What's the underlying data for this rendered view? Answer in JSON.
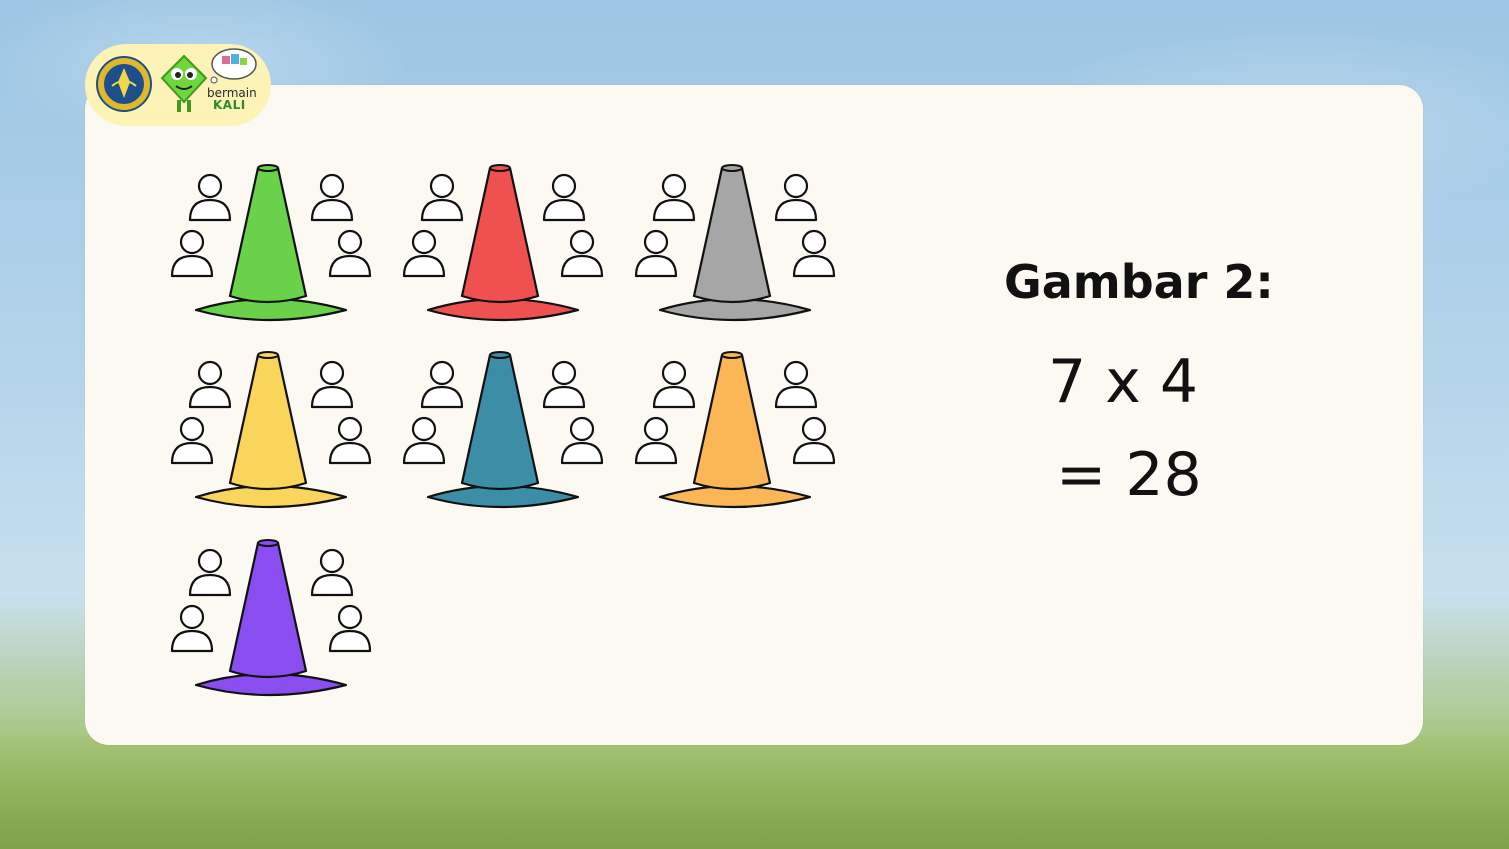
{
  "logo": {
    "brand_top": "bermain",
    "brand_bottom": "KALI"
  },
  "figure": {
    "title": "Gambar 2:",
    "equation": "7 x 4",
    "result": "= 28"
  },
  "groups": [
    {
      "color": "#6ad14a",
      "people": 4
    },
    {
      "color": "#ef5151",
      "people": 4
    },
    {
      "color": "#a6a6a6",
      "people": 4
    },
    {
      "color": "#f9d65b",
      "people": 4
    },
    {
      "color": "#3c8ea6",
      "people": 4
    },
    {
      "color": "#fbb755",
      "people": 4
    },
    {
      "color": "#8a4ef0",
      "people": 4
    }
  ],
  "colors": {
    "card": "#fbf9f2",
    "badge": "#fdf3b7",
    "mascot": "#6ed63e"
  }
}
